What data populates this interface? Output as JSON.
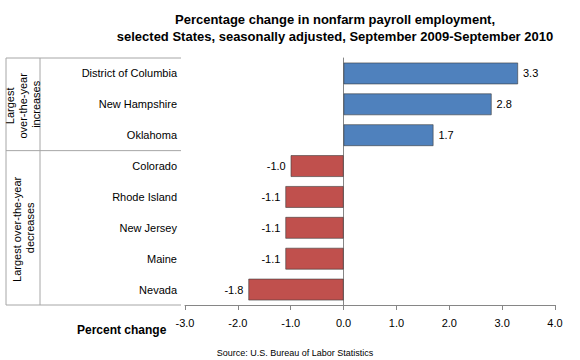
{
  "chart_data": {
    "type": "bar",
    "orientation": "horizontal",
    "title": "Percentage change in nonfarm payroll employment,\nselected States, seasonally adjusted, September 2009-September 2010",
    "xlabel": "Percent change",
    "source": "Source: U.S. Bureau of Labor Statistics",
    "categories": [
      "District of Columbia",
      "New Hampshire",
      "Oklahoma",
      "Colorado",
      "Rhode Island",
      "New Jersey",
      "Maine",
      "Nevada"
    ],
    "values": [
      3.3,
      2.8,
      1.7,
      -1.0,
      -1.1,
      -1.1,
      -1.1,
      -1.8
    ],
    "value_labels": [
      "3.3",
      "2.8",
      "1.7",
      "-1.0",
      "-1.1",
      "-1.1",
      "-1.1",
      "-1.8"
    ],
    "colors": [
      "#4F81BD",
      "#4F81BD",
      "#4F81BD",
      "#C0504D",
      "#C0504D",
      "#C0504D",
      "#C0504D",
      "#C0504D"
    ],
    "groups": [
      {
        "label": "Largest over-the-year increases",
        "count": 3
      },
      {
        "label": "Largest over-the-year decreases",
        "count": 5
      }
    ],
    "xlim": [
      -3,
      4
    ],
    "xticks": [
      {
        "value": -3,
        "label": "-3.0"
      },
      {
        "value": -2,
        "label": "-2.0"
      },
      {
        "value": -1,
        "label": "-1.0"
      },
      {
        "value": 0,
        "label": "0.0"
      },
      {
        "value": 1,
        "label": "1.0"
      },
      {
        "value": 2,
        "label": "2.0"
      },
      {
        "value": 3,
        "label": "3.0"
      },
      {
        "value": 4,
        "label": "4.0"
      }
    ],
    "data_labels": true,
    "grid": false
  }
}
